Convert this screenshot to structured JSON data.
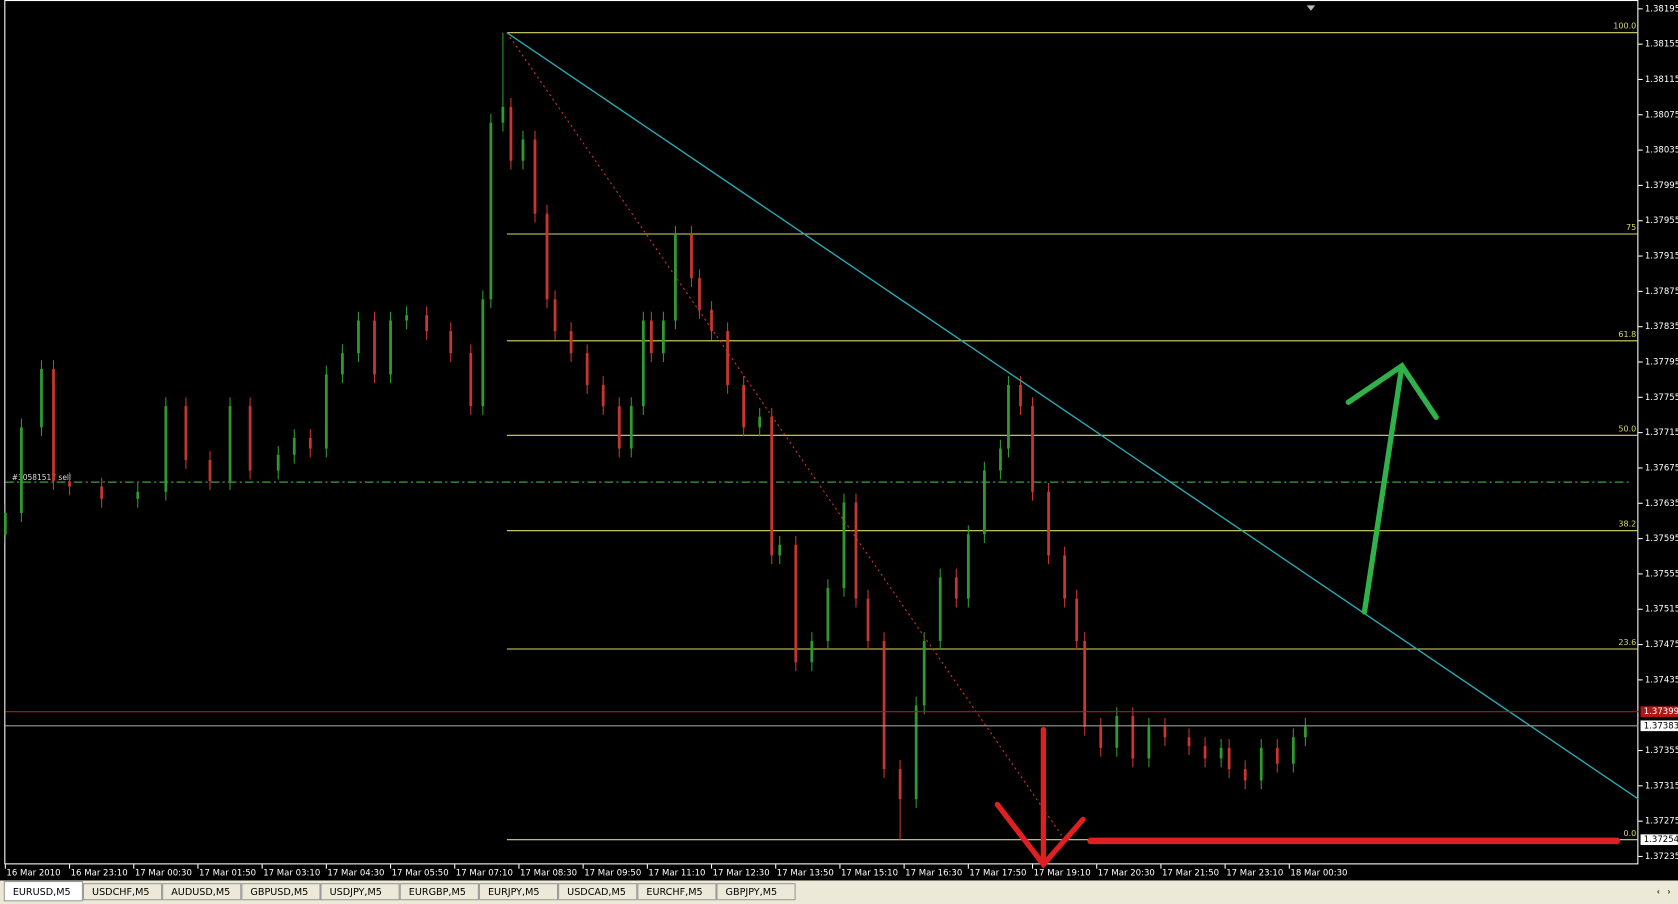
{
  "chart_data": {
    "type": "candlestick",
    "up_color": "#2f9a2f",
    "down_color": "#c8362f",
    "xlim": [
      0,
      407
    ],
    "ylim": [
      1.37226,
      1.38205
    ],
    "yticks": [
      1.38195,
      1.38155,
      1.38115,
      1.38075,
      1.38035,
      1.37995,
      1.37955,
      1.37915,
      1.37875,
      1.37835,
      1.37795,
      1.37755,
      1.37715,
      1.37675,
      1.37635,
      1.37595,
      1.37555,
      1.37515,
      1.37475,
      1.37435,
      1.37355,
      1.37315,
      1.37275,
      1.37235
    ],
    "xticks": [
      {
        "value": 0,
        "label": "16 Mar 2010"
      },
      {
        "value": 16,
        "label": "16 Mar 23:10"
      },
      {
        "value": 32,
        "label": "17 Mar 00:30"
      },
      {
        "value": 48,
        "label": "17 Mar 01:50"
      },
      {
        "value": 64,
        "label": "17 Mar 03:10"
      },
      {
        "value": 80,
        "label": "17 Mar 04:30"
      },
      {
        "value": 96,
        "label": "17 Mar 05:50"
      },
      {
        "value": 112,
        "label": "17 Mar 07:10"
      },
      {
        "value": 128,
        "label": "17 Mar 08:30"
      },
      {
        "value": 144,
        "label": "17 Mar 09:50"
      },
      {
        "value": 160,
        "label": "17 Mar 11:10"
      },
      {
        "value": 176,
        "label": "17 Mar 12:30"
      },
      {
        "value": 192,
        "label": "17 Mar 13:50"
      },
      {
        "value": 208,
        "label": "17 Mar 15:10"
      },
      {
        "value": 224,
        "label": "17 Mar 16:30"
      },
      {
        "value": 240,
        "label": "17 Mar 17:50"
      },
      {
        "value": 256,
        "label": "17 Mar 19:10"
      },
      {
        "value": 272,
        "label": "17 Mar 20:30"
      },
      {
        "value": 288,
        "label": "17 Mar 21:50"
      },
      {
        "value": 304,
        "label": "17 Mar 23:10"
      },
      {
        "value": 320,
        "label": "18 Mar 00:30"
      }
    ],
    "x": [
      0,
      4,
      9,
      12,
      16,
      24,
      33,
      40,
      45,
      51,
      56,
      61,
      68,
      72,
      76,
      80,
      84,
      88,
      92,
      96,
      100,
      105,
      111,
      116,
      119,
      121,
      124,
      126,
      129,
      132,
      135,
      137,
      141,
      145,
      149,
      153,
      156,
      159,
      161,
      164,
      167,
      171,
      173,
      176,
      180,
      184,
      188,
      191,
      193,
      197,
      201,
      205,
      209,
      212,
      215,
      219,
      223,
      227,
      229,
      233,
      237,
      240,
      244,
      248,
      250,
      253,
      256,
      260,
      264,
      267,
      269,
      273,
      277,
      281,
      285,
      289,
      295,
      299,
      303,
      305,
      309,
      313,
      317,
      321,
      324
    ],
    "open": [
      1.376,
      1.37624,
      1.37721,
      1.37787,
      1.3766,
      1.37654,
      1.3764,
      1.37648,
      1.37745,
      1.37684,
      1.3766,
      1.37745,
      1.37672,
      1.3769,
      1.37709,
      1.37697,
      1.37781,
      1.37805,
      1.37842,
      1.37781,
      1.37842,
      1.37848,
      1.3783,
      1.37805,
      1.37745,
      1.37866,
      1.38066,
      1.38084,
      1.38023,
      1.38047,
      1.37963,
      1.37866,
      1.3783,
      1.37805,
      1.37769,
      1.37745,
      1.37697,
      1.37745,
      1.37842,
      1.37805,
      1.37842,
      1.37939,
      1.3789,
      1.37854,
      1.3783,
      1.37769,
      1.37721,
      1.37733,
      1.37576,
      1.37588,
      1.37455,
      1.37479,
      1.37539,
      1.37636,
      1.37527,
      1.37479,
      1.37334,
      1.373,
      1.37406,
      1.37479,
      1.37551,
      1.37527,
      1.376,
      1.37672,
      1.37697,
      1.37769,
      1.37745,
      1.37648,
      1.37576,
      1.37527,
      1.37479,
      1.37382,
      1.37358,
      1.37394,
      1.37346,
      1.37382,
      1.3737,
      1.3736,
      1.37346,
      1.37358,
      1.37334,
      1.37321,
      1.37358,
      1.3734,
      1.3737
    ],
    "high": [
      1.37634,
      1.37731,
      1.37797,
      1.37797,
      1.3767,
      1.37664,
      1.37658,
      1.37755,
      1.37755,
      1.37694,
      1.37755,
      1.37755,
      1.377,
      1.37719,
      1.37719,
      1.37791,
      1.37815,
      1.37852,
      1.37852,
      1.37852,
      1.37858,
      1.37858,
      1.3784,
      1.37815,
      1.37876,
      1.38076,
      1.38168,
      1.38094,
      1.38057,
      1.38057,
      1.37973,
      1.37876,
      1.3784,
      1.37815,
      1.37779,
      1.37755,
      1.37755,
      1.37852,
      1.37852,
      1.37852,
      1.37949,
      1.37949,
      1.379,
      1.37864,
      1.3784,
      1.37779,
      1.37743,
      1.37743,
      1.37598,
      1.37598,
      1.37489,
      1.37549,
      1.37646,
      1.37646,
      1.37537,
      1.37489,
      1.37344,
      1.37416,
      1.37489,
      1.37561,
      1.37561,
      1.3761,
      1.37682,
      1.37707,
      1.37779,
      1.37779,
      1.37755,
      1.37658,
      1.37586,
      1.37537,
      1.37489,
      1.37392,
      1.37404,
      1.37404,
      1.37392,
      1.37392,
      1.3738,
      1.3737,
      1.37368,
      1.37368,
      1.37344,
      1.37368,
      1.37368,
      1.3738,
      1.37392
    ],
    "low": [
      1.3759,
      1.37614,
      1.37711,
      1.3765,
      1.37644,
      1.3763,
      1.3763,
      1.37638,
      1.37674,
      1.3765,
      1.3765,
      1.37662,
      1.37662,
      1.3768,
      1.37687,
      1.37687,
      1.37771,
      1.37795,
      1.37771,
      1.37771,
      1.37832,
      1.3782,
      1.37795,
      1.37735,
      1.37735,
      1.37856,
      1.38056,
      1.38013,
      1.38013,
      1.37953,
      1.37856,
      1.3782,
      1.37795,
      1.37759,
      1.37735,
      1.37687,
      1.37687,
      1.37735,
      1.37795,
      1.37795,
      1.37832,
      1.3788,
      1.37844,
      1.3782,
      1.37759,
      1.37711,
      1.37711,
      1.37566,
      1.37566,
      1.37445,
      1.37445,
      1.37469,
      1.37529,
      1.37517,
      1.37469,
      1.37324,
      1.37254,
      1.3729,
      1.37396,
      1.37469,
      1.37517,
      1.37517,
      1.3759,
      1.37662,
      1.37687,
      1.37735,
      1.37638,
      1.37566,
      1.37517,
      1.37469,
      1.37372,
      1.37348,
      1.37348,
      1.37336,
      1.37336,
      1.3736,
      1.3735,
      1.37336,
      1.37336,
      1.37324,
      1.37311,
      1.37311,
      1.3733,
      1.3733,
      1.3736
    ],
    "close": [
      1.37624,
      1.37721,
      1.37787,
      1.3766,
      1.37654,
      1.3764,
      1.37648,
      1.37745,
      1.37684,
      1.3766,
      1.37745,
      1.37672,
      1.3769,
      1.37709,
      1.37697,
      1.37781,
      1.37805,
      1.37842,
      1.37781,
      1.37842,
      1.37848,
      1.3783,
      1.37805,
      1.37745,
      1.37866,
      1.38066,
      1.38084,
      1.38023,
      1.38047,
      1.37963,
      1.37866,
      1.3783,
      1.37805,
      1.37769,
      1.37745,
      1.37697,
      1.37745,
      1.37842,
      1.37805,
      1.37842,
      1.37939,
      1.3789,
      1.37854,
      1.3783,
      1.37769,
      1.37721,
      1.37733,
      1.37576,
      1.37588,
      1.37455,
      1.37479,
      1.37539,
      1.37636,
      1.37527,
      1.37479,
      1.37334,
      1.373,
      1.37406,
      1.37479,
      1.37551,
      1.37527,
      1.376,
      1.37672,
      1.37697,
      1.37769,
      1.37745,
      1.37648,
      1.37576,
      1.37527,
      1.37479,
      1.37382,
      1.37358,
      1.37394,
      1.37346,
      1.37382,
      1.3737,
      1.3736,
      1.37346,
      1.37358,
      1.37334,
      1.37321,
      1.37358,
      1.3734,
      1.3737,
      1.37382
    ],
    "fibonacci": {
      "color": "#d8d86a",
      "x": [
        125,
        407
      ],
      "levels": [
        {
          "label": "100.0",
          "value": 1.38168
        },
        {
          "label": "75",
          "value": 1.3794
        },
        {
          "label": "61.8",
          "value": 1.37819
        },
        {
          "label": "50.0",
          "value": 1.37712
        },
        {
          "label": "38.2",
          "value": 1.37604
        },
        {
          "label": "23.6",
          "value": 1.3747
        },
        {
          "label": "0.0",
          "value": 1.37254
        }
      ]
    },
    "fib_axis_label": 1.37254,
    "trendline": {
      "color": "#2aa9b4",
      "x": [
        125,
        407
      ],
      "y": [
        1.38168,
        1.373
      ]
    },
    "dotted_line": {
      "color": "#c8362f",
      "x": [
        125,
        264
      ],
      "y": [
        1.38168,
        1.37254
      ]
    },
    "ask_line": {
      "color": "#b01818",
      "value": 1.37399
    },
    "bid_line": {
      "color": "#9a9a9a",
      "value": 1.37383
    },
    "order_line": {
      "color": "#3fa03f",
      "value": 1.37659,
      "label": "#30581517 sell"
    }
  },
  "tabs": [
    "EURUSD,M5",
    "USDCHF,M5",
    "AUDUSD,M5",
    "GBPUSD,M5",
    "USDJPY,M5",
    "EURGBP,M5",
    "EURJPY,M5",
    "USDCAD,M5",
    "EURCHF,M5",
    "GBPJPY,M5"
  ]
}
